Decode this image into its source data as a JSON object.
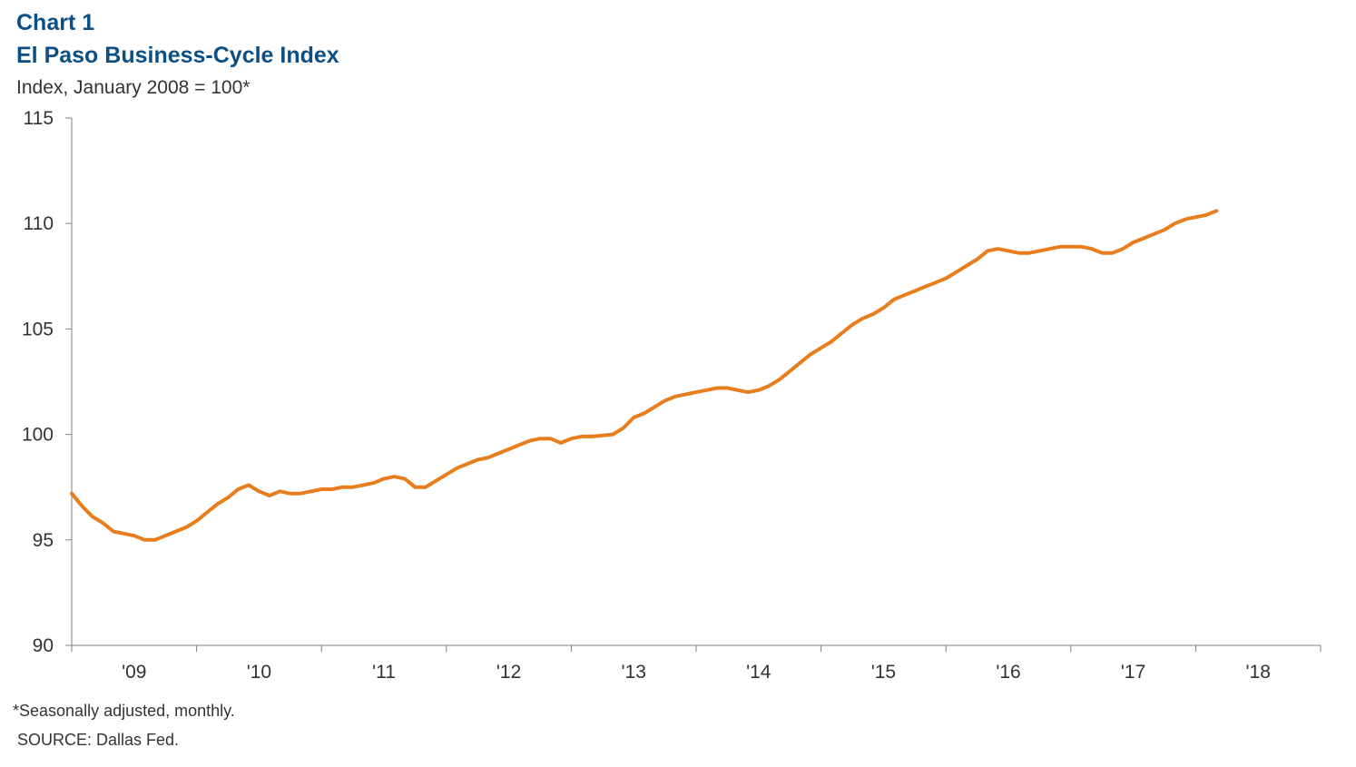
{
  "chart_label": "Chart 1",
  "note": "*Seasonally adjusted, monthly.",
  "source": "SOURCE: Dallas Fed.",
  "colors": {
    "series": "#e87d1e",
    "title": "#0b4f85",
    "axis": "#7f7f7f"
  },
  "chart_data": {
    "type": "line",
    "title": "El Paso Business-Cycle Index",
    "subtitle": "Index, January 2008 = 100*",
    "xlabel": "",
    "ylabel": "",
    "ylim": [
      90,
      115
    ],
    "yticks": [
      "115",
      "110",
      "105",
      "100",
      "95",
      "90"
    ],
    "xticks": [
      "'09",
      "'10",
      "'11",
      "'12",
      "'13",
      "'14",
      "'15",
      "'16",
      "'17",
      "'18"
    ],
    "grid": false,
    "legend": "none",
    "start_month": "2009-01",
    "series": [
      {
        "values": [
          97.2,
          96.6,
          96.1,
          95.8,
          95.4,
          95.3,
          95.2,
          95.0,
          95.0,
          95.2,
          95.4,
          95.6,
          95.9,
          96.3,
          96.7,
          97.0,
          97.4,
          97.6,
          97.3,
          97.1,
          97.3,
          97.2,
          97.2,
          97.3,
          97.4,
          97.4,
          97.5,
          97.5,
          97.6,
          97.7,
          97.9,
          98.0,
          97.9,
          97.5,
          97.5,
          97.8,
          98.1,
          98.4,
          98.6,
          98.8,
          98.9,
          99.1,
          99.3,
          99.5,
          99.7,
          99.8,
          99.8,
          99.6,
          99.8,
          99.9,
          99.9,
          99.95,
          100.0,
          100.3,
          100.8,
          101.0,
          101.3,
          101.6,
          101.8,
          101.9,
          102.0,
          102.1,
          102.2,
          102.2,
          102.1,
          102.0,
          102.1,
          102.3,
          102.6,
          103.0,
          103.4,
          103.8,
          104.1,
          104.4,
          104.8,
          105.2,
          105.5,
          105.7,
          106.0,
          106.4,
          106.6,
          106.8,
          107.0,
          107.2,
          107.4,
          107.7,
          108.0,
          108.3,
          108.7,
          108.8,
          108.7,
          108.6,
          108.6,
          108.7,
          108.8,
          108.9,
          108.9,
          108.9,
          108.8,
          108.6,
          108.6,
          108.8,
          109.1,
          109.3,
          109.5,
          109.7,
          110.0,
          110.2,
          110.3,
          110.4,
          110.6
        ]
      }
    ]
  }
}
